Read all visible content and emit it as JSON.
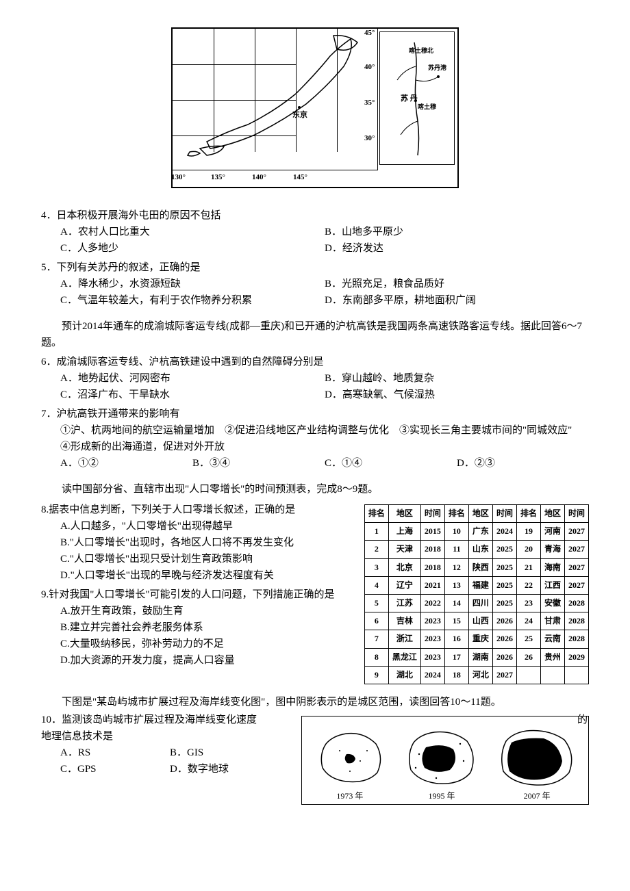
{
  "map": {
    "lon_labels": [
      "130°",
      "135°",
      "140°",
      "145°"
    ],
    "lat_labels": [
      "45°",
      "40°",
      "35°",
      "30°"
    ],
    "main_city": "东京",
    "inset_labels": [
      "喀土穆",
      "苏丹港",
      "苏 丹",
      "喀土穆"
    ]
  },
  "q4": {
    "stem": "4．日本积极开展海外屯田的原因不包括",
    "A": "A．农村人口比重大",
    "B": "B．山地多平原少",
    "C": "C．人多地少",
    "D": "D．经济发达"
  },
  "q5": {
    "stem": "5．下列有关苏丹的叙述，正确的是",
    "A": "A．降水稀少，水资源短缺",
    "B": "B．光照充足，粮食品质好",
    "C": "C．气温年较差大，有利于农作物养分积累",
    "D": "D．东南部多平原，耕地面积广阔"
  },
  "para67": "预计2014年通车的成渝城际客运专线(成都—重庆)和已开通的沪杭高铁是我国两条高速铁路客运专线。据此回答6～7题。",
  "q6": {
    "stem": "6．成渝城际客运专线、沪杭高铁建设中遇到的自然障碍分别是",
    "A": "A．地势起伏、河网密布",
    "B": "B．穿山越岭、地质复杂",
    "C": "C．沼泽广布、干旱缺水",
    "D": "D．高寒缺氧、气候湿热"
  },
  "q7": {
    "stem": "7．沪杭高铁开通带来的影响有",
    "line": "①沪、杭两地间的航空运输量增加　②促进沿线地区产业结构调整与优化　③实现长三角主要城市间的\"同城效应\"　④形成新的出海通道，促进对外开放",
    "A": "A．①②",
    "B": "B．③④",
    "C": "C．①④",
    "D": "D．②③"
  },
  "para89": "读中国部分省、直辖市出现\"人口零增长\"的时间预测表，完成8～9题。",
  "q8": {
    "stem": "8.据表中信息判断，下列关于人口零增长叙述，正确的是",
    "A": "A.人口越多，\"人口零增长\"出现得越早",
    "B": "B.\"人口零增长\"出现时，各地区人口将不再发生变化",
    "C": "C.\"人口零增长\"出现只受计划生育政策影响",
    "D": "D.\"人口零增长\"出现的早晚与经济发达程度有关"
  },
  "q9": {
    "stem": "9.针对我国\"人口零增长\"可能引发的人口问题，下列措施正确的是",
    "A": "A.放开生育政策，鼓励生育",
    "B": "B.建立并完善社会养老服务体系",
    "C": "C.大量吸纳移民，弥补劳动力的不足",
    "D": "D.加大资源的开发力度，提高人口容量"
  },
  "pop_table": {
    "headers": [
      "排名",
      "地区",
      "时间",
      "排名",
      "地区",
      "时间",
      "排名",
      "地区",
      "时间"
    ],
    "rows": [
      [
        "1",
        "上海",
        "2015",
        "10",
        "广东",
        "2024",
        "19",
        "河南",
        "2027"
      ],
      [
        "2",
        "天津",
        "2018",
        "11",
        "山东",
        "2025",
        "20",
        "青海",
        "2027"
      ],
      [
        "3",
        "北京",
        "2018",
        "12",
        "陕西",
        "2025",
        "21",
        "海南",
        "2027"
      ],
      [
        "4",
        "辽宁",
        "2021",
        "13",
        "福建",
        "2025",
        "22",
        "江西",
        "2027"
      ],
      [
        "5",
        "江苏",
        "2022",
        "14",
        "四川",
        "2025",
        "23",
        "安徽",
        "2028"
      ],
      [
        "6",
        "吉林",
        "2023",
        "15",
        "山西",
        "2026",
        "24",
        "甘肃",
        "2028"
      ],
      [
        "7",
        "浙江",
        "2023",
        "16",
        "重庆",
        "2026",
        "25",
        "云南",
        "2028"
      ],
      [
        "8",
        "黑龙江",
        "2023",
        "17",
        "湖南",
        "2026",
        "26",
        "贵州",
        "2029"
      ],
      [
        "9",
        "湖北",
        "2024",
        "18",
        "河北",
        "2027",
        "",
        "",
        ""
      ]
    ]
  },
  "para1011": "下图是\"某岛屿城市扩展过程及海岸线变化图\"，图中阴影表示的是城区范围，读图回答10～11题。",
  "q10": {
    "stem_a": "10．监测该岛屿城市扩展过程及海岸线变化速度",
    "stem_b": "的地理信息技术是",
    "A": "A．RS",
    "B": "B．GIS",
    "C": "C．GPS",
    "D": "D．数字地球"
  },
  "islands": {
    "years": [
      "1973 年",
      "1995 年",
      "2007 年"
    ]
  }
}
